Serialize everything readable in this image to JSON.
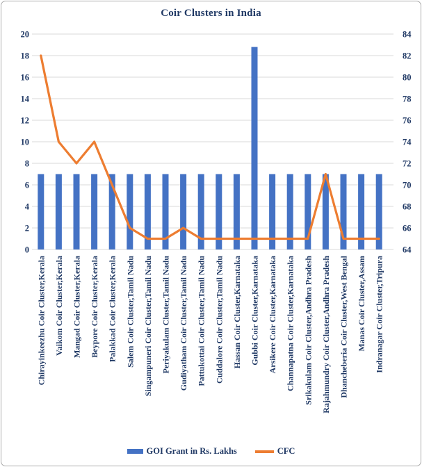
{
  "title": "Coir Clusters in India",
  "legend": {
    "bar_label": "GOI Grant in Rs. Lakhs",
    "line_label": "CFC"
  },
  "colors": {
    "bar": "#4472C4",
    "line": "#ED7D31",
    "text": "#1F3864",
    "gridline": "#D9D9D9",
    "frame_border": "#A9A9A9"
  },
  "chart_data": {
    "type": "bar",
    "combo": "bar + line, dual axis",
    "title": "Coir Clusters in India",
    "categories": [
      "Chirayinkeezhu Coir Cluster,Kerala",
      "Vaikom Coir Cluster,Kerala",
      "Mangad Coir Cluster,Kerala",
      "Beypore Coir Cluster,Kerala",
      "Palakkad Coir Cluster,Kerala",
      "Salem Coir Cluster,Tamil Nadu",
      "Singampuneri Coir Cluster,Tamil Nadu",
      "Periyakulam Cluster,Tamil Nadu",
      "Gudiyatham Coir Cluster,Tamil Nadu",
      "Pattukottai Coir Cluster,Tamil Nadu",
      "Cuddalore Coir Cluster,Tamil Nadu",
      "Hassan Coir Cluster,Karnataka",
      "Gubbi Coir Cluster,Karnataka",
      "Arsikere Coir Cluster,Karnataka",
      "Channapatna Coir Cluster,Karnataka",
      "Srikakulam Coir Cluster,Andhra Pradesh",
      "Rajahmundry Coir Cluster,Andhra Pradesh",
      "Dhancheberia Coir Cluster,West Bengal",
      "Manas Coir Cluster,Assam",
      "Indranagar Coir Cluster,Tripura"
    ],
    "series": [
      {
        "name": "GOI Grant in Rs. Lakhs",
        "type": "bar",
        "axis": "left",
        "color": "#4472C4",
        "values": [
          7,
          7,
          7,
          7,
          7,
          7,
          7,
          7,
          7,
          7,
          7,
          7,
          18.8,
          7,
          7,
          7,
          7,
          7,
          7,
          7
        ]
      },
      {
        "name": "CFC",
        "type": "line",
        "axis": "right",
        "color": "#ED7D31",
        "values": [
          82,
          74,
          72,
          74,
          70,
          66,
          65,
          65,
          66,
          65,
          65,
          65,
          65,
          65,
          65,
          65,
          71,
          65,
          65,
          65
        ]
      }
    ],
    "left_axis": {
      "min": 0,
      "max": 20,
      "step": 2
    },
    "right_axis": {
      "min": 64,
      "max": 84,
      "step": 2
    },
    "grid": true,
    "legend_position": "bottom"
  }
}
